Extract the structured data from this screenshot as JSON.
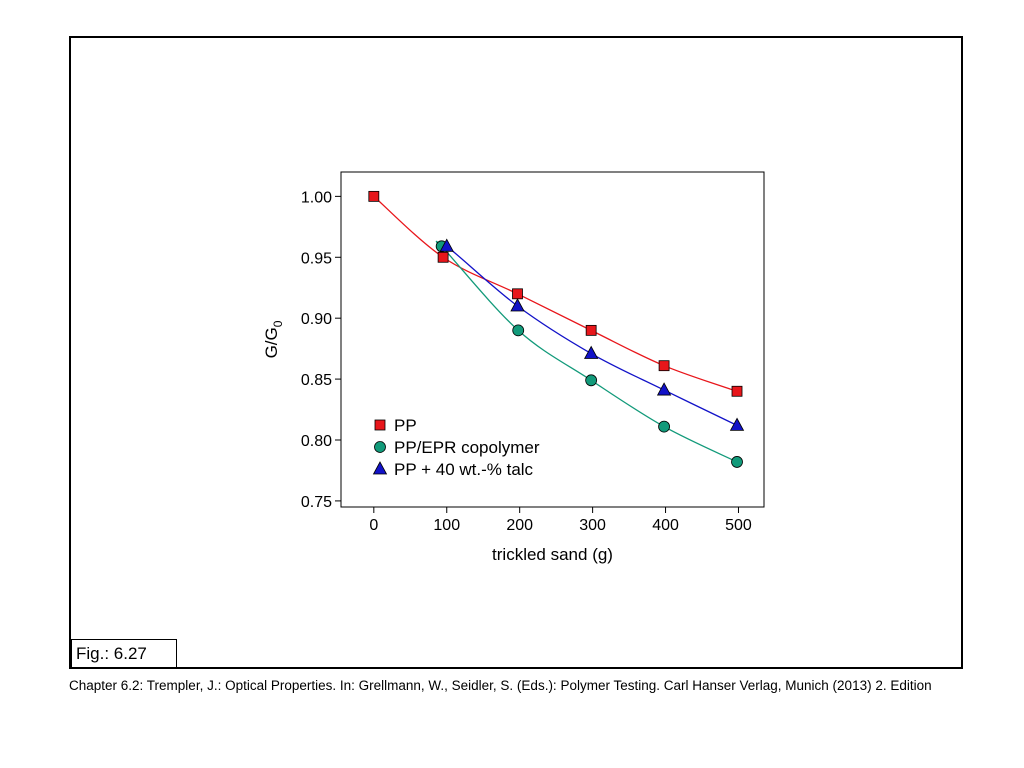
{
  "figure": {
    "label": "Fig.: 6.27"
  },
  "caption": "Chapter 6.2: Trempler, J.: Optical Properties. In: Grellmann, W., Seidler, S. (Eds.): Polymer Testing. Carl Hanser Verlag, Munich (2013) 2. Edition",
  "chart_data": {
    "type": "line",
    "xlabel": "trickled sand (g)",
    "ylabel_main": "G/G",
    "ylabel_sub": "0",
    "xlim": [
      -45,
      535
    ],
    "ylim": [
      0.745,
      1.02
    ],
    "xticks": [
      0,
      100,
      200,
      300,
      400,
      500
    ],
    "xtick_labels": [
      "0",
      "100",
      "200",
      "300",
      "400",
      "500"
    ],
    "yticks": [
      0.75,
      0.8,
      0.85,
      0.9,
      0.95,
      1.0
    ],
    "ytick_labels": [
      "0.75",
      "0.80",
      "0.85",
      "0.90",
      "0.95",
      "1.00"
    ],
    "grid": false,
    "legend_position": "bottom-left",
    "series": [
      {
        "name": "PP",
        "marker": "square",
        "color": "#e8161b",
        "line_color": "#e8161b",
        "x": [
          0,
          95,
          197,
          298,
          398,
          498
        ],
        "y": [
          1.0,
          0.95,
          0.92,
          0.89,
          0.861,
          0.84
        ]
      },
      {
        "name": "PP/EPR copolymer",
        "marker": "circle",
        "color": "#129a7a",
        "line_color": "#129a7a",
        "x": [
          93,
          198,
          298,
          398,
          498
        ],
        "y": [
          0.959,
          0.89,
          0.849,
          0.811,
          0.782
        ]
      },
      {
        "name": "PP + 40 wt.-% talc",
        "marker": "triangle",
        "color": "#1212c8",
        "line_color": "#1212c8",
        "x": [
          100,
          197,
          298,
          398,
          498
        ],
        "y": [
          0.959,
          0.91,
          0.871,
          0.841,
          0.812
        ]
      }
    ]
  }
}
